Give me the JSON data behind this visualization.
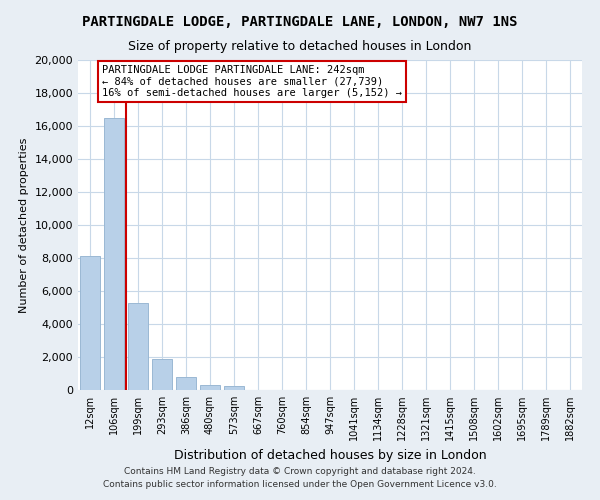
{
  "title": "PARTINGDALE LODGE, PARTINGDALE LANE, LONDON, NW7 1NS",
  "subtitle": "Size of property relative to detached houses in London",
  "xlabel": "Distribution of detached houses by size in London",
  "ylabel": "Number of detached properties",
  "bar_labels": [
    "12sqm",
    "106sqm",
    "199sqm",
    "293sqm",
    "386sqm",
    "480sqm",
    "573sqm",
    "667sqm",
    "760sqm",
    "854sqm",
    "947sqm",
    "1041sqm",
    "1134sqm",
    "1228sqm",
    "1321sqm",
    "1415sqm",
    "1508sqm",
    "1602sqm",
    "1695sqm",
    "1789sqm",
    "1882sqm"
  ],
  "bar_values": [
    8100,
    16500,
    5300,
    1850,
    800,
    300,
    230,
    0,
    0,
    0,
    0,
    0,
    0,
    0,
    0,
    0,
    0,
    0,
    0,
    0,
    0
  ],
  "bar_color": "#b8d0e8",
  "bar_edge_color": "#9ab8d4",
  "vline_color": "#cc0000",
  "vline_pos": 1.5,
  "ylim": [
    0,
    20000
  ],
  "yticks": [
    0,
    2000,
    4000,
    6000,
    8000,
    10000,
    12000,
    14000,
    16000,
    18000,
    20000
  ],
  "annotation_title": "PARTINGDALE LODGE PARTINGDALE LANE: 242sqm",
  "annotation_line1": "← 84% of detached houses are smaller (27,739)",
  "annotation_line2": "16% of semi-detached houses are larger (5,152) →",
  "annotation_box_color": "#ffffff",
  "annotation_box_edge": "#cc0000",
  "footer_line1": "Contains HM Land Registry data © Crown copyright and database right 2024.",
  "footer_line2": "Contains public sector information licensed under the Open Government Licence v3.0.",
  "bg_color": "#e8eef4",
  "plot_bg_color": "#ffffff",
  "grid_color": "#c8d8e8",
  "title_fontsize": 10,
  "subtitle_fontsize": 9
}
